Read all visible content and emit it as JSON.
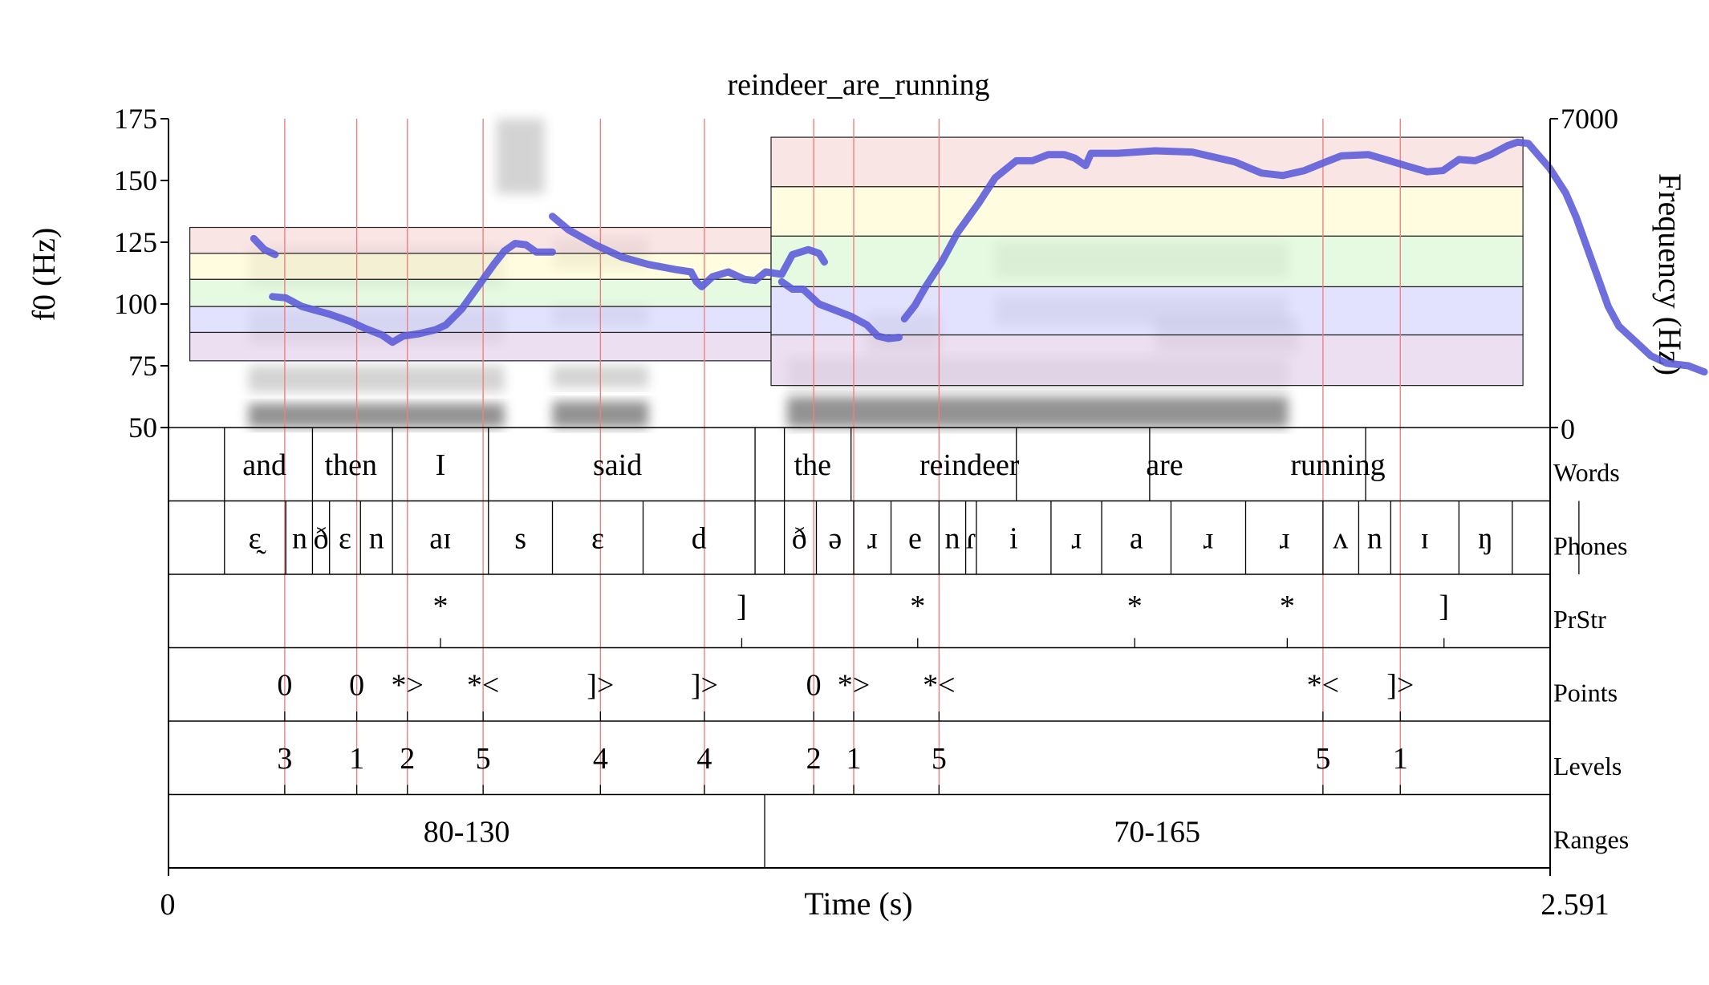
{
  "chart_data": {
    "type": "line",
    "title": "reindeer_are_running",
    "xlabel": "Time (s)",
    "ylabel_left": "f0 (Hz)",
    "ylabel_right": "Frequency (Hz)",
    "xlim": [
      0,
      2.591
    ],
    "ylim": [
      50,
      175
    ],
    "ylim_right": [
      0,
      7000
    ],
    "x_ticks": [
      "0",
      "2.591"
    ],
    "y_ticks": [
      "50",
      "75",
      "100",
      "125",
      "150",
      "175"
    ],
    "y_right_ticks": [
      "0",
      "7000"
    ],
    "spectrogram_blobs": [
      {
        "t0": 0.15,
        "t1": 0.63,
        "f0": 0,
        "f1": 550
      },
      {
        "t0": 0.15,
        "t1": 0.63,
        "f0": 800,
        "f1": 1400
      },
      {
        "t0": 0.15,
        "t1": 0.63,
        "f0": 1900,
        "f1": 2700
      },
      {
        "t0": 0.15,
        "t1": 0.63,
        "f0": 3200,
        "f1": 4100
      },
      {
        "t0": 0.615,
        "t1": 0.705,
        "f0": 5300,
        "f1": 7000
      },
      {
        "t0": 0.72,
        "t1": 0.9,
        "f0": 0,
        "f1": 600
      },
      {
        "t0": 0.72,
        "t1": 0.9,
        "f0": 900,
        "f1": 1400
      },
      {
        "t0": 0.72,
        "t1": 0.9,
        "f0": 2300,
        "f1": 2800
      },
      {
        "t0": 0.72,
        "t1": 0.9,
        "f0": 3600,
        "f1": 4300
      },
      {
        "t0": 1.16,
        "t1": 2.1,
        "f0": 0,
        "f1": 700
      },
      {
        "t0": 1.16,
        "t1": 2.1,
        "f0": 900,
        "f1": 1600
      },
      {
        "t0": 1.55,
        "t1": 2.1,
        "f0": 2300,
        "f1": 3000
      },
      {
        "t0": 1.55,
        "t1": 2.1,
        "f0": 3400,
        "f1": 4200
      },
      {
        "t0": 1.31,
        "t1": 1.45,
        "f0": 1700,
        "f1": 2600
      },
      {
        "t0": 1.85,
        "t1": 2.12,
        "f0": 1700,
        "f1": 2500
      }
    ],
    "range_bands": [
      {
        "t0": 0.04,
        "t1": 1.13,
        "levels": [
          77,
          88.5,
          99,
          110,
          120.5,
          131
        ]
      },
      {
        "t0": 1.13,
        "t1": 2.54,
        "levels": [
          67,
          87.5,
          107,
          127.5,
          147.5,
          167.5
        ]
      }
    ],
    "band_colors": [
      "#e3d2ec",
      "#d7d7fd",
      "#dcf7d6",
      "#fffbd2",
      "#f8dbdb"
    ],
    "f0_color": "#5a5ad8",
    "f0_segments": [
      [
        [
          0.16,
          126.5
        ],
        [
          0.18,
          122
        ],
        [
          0.2,
          120
        ]
      ],
      [
        [
          0.195,
          103
        ],
        [
          0.22,
          102.5
        ],
        [
          0.25,
          99
        ],
        [
          0.3,
          96
        ],
        [
          0.34,
          93
        ],
        [
          0.37,
          90
        ],
        [
          0.4,
          87.5
        ],
        [
          0.42,
          84.5
        ],
        [
          0.44,
          87
        ],
        [
          0.47,
          88
        ],
        [
          0.5,
          89.5
        ],
        [
          0.52,
          91.5
        ],
        [
          0.55,
          98
        ],
        [
          0.57,
          104
        ],
        [
          0.59,
          110
        ],
        [
          0.61,
          116
        ],
        [
          0.63,
          121.5
        ],
        [
          0.65,
          124.5
        ],
        [
          0.67,
          124
        ],
        [
          0.69,
          121
        ],
        [
          0.72,
          121
        ]
      ],
      [
        [
          0.72,
          135.5
        ],
        [
          0.75,
          130
        ],
        [
          0.8,
          124
        ],
        [
          0.85,
          119
        ],
        [
          0.9,
          116
        ],
        [
          0.95,
          114
        ],
        [
          0.98,
          113
        ],
        [
          0.99,
          109
        ],
        [
          1.0,
          107
        ],
        [
          1.02,
          111
        ],
        [
          1.05,
          113
        ],
        [
          1.08,
          110
        ],
        [
          1.1,
          109.5
        ],
        [
          1.12,
          113
        ],
        [
          1.15,
          112
        ],
        [
          1.17,
          120
        ],
        [
          1.2,
          122
        ],
        [
          1.22,
          120.5
        ],
        [
          1.23,
          117
        ]
      ],
      [
        [
          1.15,
          109
        ],
        [
          1.17,
          106
        ],
        [
          1.19,
          106
        ],
        [
          1.22,
          100
        ],
        [
          1.25,
          97.5
        ],
        [
          1.28,
          95
        ],
        [
          1.31,
          91.5
        ],
        [
          1.33,
          87
        ],
        [
          1.35,
          86
        ],
        [
          1.37,
          86.5
        ]
      ],
      [
        [
          1.38,
          94
        ],
        [
          1.4,
          99.5
        ],
        [
          1.42,
          107
        ],
        [
          1.45,
          117
        ],
        [
          1.48,
          129
        ],
        [
          1.52,
          141
        ],
        [
          1.55,
          151
        ],
        [
          1.59,
          158
        ],
        [
          1.62,
          158
        ],
        [
          1.65,
          160.5
        ],
        [
          1.68,
          160.5
        ],
        [
          1.7,
          159
        ],
        [
          1.72,
          156
        ],
        [
          1.73,
          161
        ],
        [
          1.78,
          161
        ],
        [
          1.85,
          162
        ],
        [
          1.92,
          161.5
        ],
        [
          2.0,
          157.5
        ],
        [
          2.05,
          153
        ],
        [
          2.09,
          152
        ],
        [
          2.13,
          154
        ],
        [
          2.17,
          157.5
        ],
        [
          2.2,
          160
        ],
        [
          2.25,
          160.5
        ],
        [
          2.29,
          158
        ],
        [
          2.32,
          156
        ],
        [
          2.36,
          153.5
        ],
        [
          2.39,
          154
        ],
        [
          2.42,
          158.5
        ],
        [
          2.45,
          158
        ],
        [
          2.48,
          160.5
        ],
        [
          2.51,
          164
        ],
        [
          2.53,
          165.5
        ],
        [
          2.55,
          165
        ],
        [
          2.57,
          160
        ],
        [
          2.59,
          155
        ],
        [
          2.62,
          145
        ],
        [
          2.64,
          135
        ],
        [
          2.66,
          123
        ],
        [
          2.68,
          111
        ],
        [
          2.7,
          99
        ],
        [
          2.72,
          91
        ],
        [
          2.75,
          85
        ],
        [
          2.78,
          79
        ],
        [
          2.81,
          76
        ],
        [
          2.85,
          75
        ],
        [
          2.88,
          72.5
        ]
      ]
    ],
    "tiers": [
      {
        "name": "Words",
        "boundaries": [
          0.105,
          0.27,
          0.42,
          0.6,
          1.1,
          1.155,
          1.28,
          1.59,
          1.84,
          2.245
        ],
        "labels": [
          {
            "t": 0.18,
            "text": "and"
          },
          {
            "t": 0.342,
            "text": "then"
          },
          {
            "t": 0.51,
            "text": "I"
          },
          {
            "t": 0.842,
            "text": "said"
          },
          {
            "t": 1.208,
            "text": "the"
          },
          {
            "t": 1.502,
            "text": "reindeer"
          },
          {
            "t": 1.868,
            "text": "are"
          },
          {
            "t": 2.193,
            "text": "running"
          }
        ]
      },
      {
        "name": "Phones",
        "boundaries": [
          0.105,
          0.22,
          0.27,
          0.302,
          0.36,
          0.42,
          0.6,
          0.72,
          0.89,
          1.1,
          1.155,
          1.215,
          1.285,
          1.355,
          1.445,
          1.495,
          1.515,
          1.655,
          1.75,
          1.88,
          2.02,
          2.165,
          2.232,
          2.292,
          2.42,
          2.52,
          2.645
        ],
        "labels": [
          {
            "t": 0.162,
            "text": "ɛ̰"
          },
          {
            "t": 0.246,
            "text": "n"
          },
          {
            "t": 0.286,
            "text": "ð"
          },
          {
            "t": 0.331,
            "text": "ɛ"
          },
          {
            "t": 0.39,
            "text": "n"
          },
          {
            "t": 0.51,
            "text": "aɪ"
          },
          {
            "t": 0.66,
            "text": "s"
          },
          {
            "t": 0.805,
            "text": "ɛ"
          },
          {
            "t": 0.995,
            "text": "d"
          },
          {
            "t": 1.183,
            "text": "ð"
          },
          {
            "t": 1.25,
            "text": "ə"
          },
          {
            "t": 1.32,
            "text": "ɹ"
          },
          {
            "t": 1.4,
            "text": "e"
          },
          {
            "t": 1.47,
            "text": "n"
          },
          {
            "t": 1.505,
            "text": "ɾ"
          },
          {
            "t": 1.585,
            "text": "i"
          },
          {
            "t": 1.703,
            "text": "ɹ"
          },
          {
            "t": 1.815,
            "text": "a"
          },
          {
            "t": 1.95,
            "text": "ɹ"
          },
          {
            "t": 2.093,
            "text": "ɹ"
          },
          {
            "t": 2.198,
            "text": "ʌ"
          },
          {
            "t": 2.262,
            "text": "n"
          },
          {
            "t": 2.356,
            "text": "ɪ"
          },
          {
            "t": 2.47,
            "text": "ŋ"
          }
        ]
      },
      {
        "name": "PrStr",
        "boundaries": [],
        "labels": [
          {
            "t": 0.51,
            "text": "*"
          },
          {
            "t": 1.075,
            "text": "]"
          },
          {
            "t": 1.405,
            "text": "*"
          },
          {
            "t": 1.812,
            "text": "*"
          },
          {
            "t": 2.098,
            "text": "*"
          },
          {
            "t": 2.392,
            "text": "]"
          }
        ],
        "ticks": [
          0.51,
          1.075,
          1.405,
          1.812,
          2.098,
          2.392
        ]
      },
      {
        "name": "Points",
        "boundaries": [],
        "labels": [
          {
            "t": 0.218,
            "text": "0"
          },
          {
            "t": 0.353,
            "text": "0"
          },
          {
            "t": 0.448,
            "text": "*>"
          },
          {
            "t": 0.59,
            "text": "*<"
          },
          {
            "t": 0.81,
            "text": "]>"
          },
          {
            "t": 1.005,
            "text": "]>"
          },
          {
            "t": 1.21,
            "text": "0"
          },
          {
            "t": 1.285,
            "text": "*>"
          },
          {
            "t": 1.445,
            "text": "*<"
          },
          {
            "t": 2.165,
            "text": "*<"
          },
          {
            "t": 2.31,
            "text": "]>"
          }
        ],
        "ticks": [
          0.218,
          0.353,
          0.448,
          0.59,
          0.81,
          1.005,
          1.21,
          1.285,
          1.445,
          2.165,
          2.31
        ]
      },
      {
        "name": "Levels",
        "boundaries": [],
        "labels": [
          {
            "t": 0.218,
            "text": "3"
          },
          {
            "t": 0.353,
            "text": "1"
          },
          {
            "t": 0.448,
            "text": "2"
          },
          {
            "t": 0.59,
            "text": "5"
          },
          {
            "t": 0.81,
            "text": "4"
          },
          {
            "t": 1.005,
            "text": "4"
          },
          {
            "t": 1.21,
            "text": "2"
          },
          {
            "t": 1.285,
            "text": "1"
          },
          {
            "t": 1.445,
            "text": "5"
          },
          {
            "t": 2.165,
            "text": "5"
          },
          {
            "t": 2.31,
            "text": "1"
          }
        ],
        "ticks": [
          0.218,
          0.353,
          0.448,
          0.59,
          0.81,
          1.005,
          1.21,
          1.285,
          1.445,
          2.165,
          2.31
        ]
      },
      {
        "name": "Ranges",
        "boundaries": [
          1.118
        ],
        "labels": [
          {
            "t": 0.559,
            "text": "80-130"
          },
          {
            "t": 1.854,
            "text": "70-165"
          }
        ]
      }
    ],
    "red_lines": [
      0.218,
      0.353,
      0.448,
      0.59,
      0.81,
      1.005,
      1.21,
      1.285,
      1.445,
      2.165,
      2.31
    ],
    "red_line_color": "#f08080"
  }
}
